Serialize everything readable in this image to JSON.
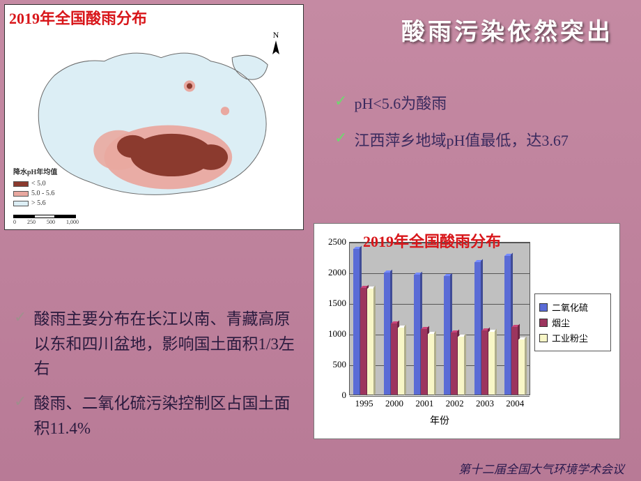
{
  "slide": {
    "title": "酸雨污染依然突出",
    "footer": "第十二届全国大气环境学术会议"
  },
  "map": {
    "title": "2019年全国酸雨分布",
    "compass_label": "N",
    "legend_title": "降水pH年均值",
    "legend_items": [
      {
        "label": "< 5.0",
        "color": "#8b3a2e"
      },
      {
        "label": "5.0 - 5.6",
        "color": "#e9a8a0"
      },
      {
        "label": "> 5.6",
        "color": "#dceef5"
      }
    ],
    "scale_ticks": [
      "0",
      "250",
      "500",
      "1,000"
    ],
    "outline_color": "#9fb8c8",
    "heavy_color": "#8b3a2e",
    "light_color": "#e9a8a0",
    "background": "#ffffff"
  },
  "bullets_top": [
    "pH<5.6为酸雨",
    "江西萍乡地域pH值最低，达3.67"
  ],
  "bullets_bottom": [
    "酸雨主要分布在长江以南、青藏高原以东和四川盆地，影响国土面积1/3左右",
    "酸雨、二氧化硫污染控制区占国土面积11.4%"
  ],
  "chart": {
    "type": "bar",
    "overlay_title": "2019年全国酸雨分布",
    "x_label": "年份",
    "categories": [
      "1995",
      "2000",
      "2001",
      "2002",
      "2003",
      "2004"
    ],
    "series": [
      {
        "name": "二氧化硫",
        "color": "#5a6bd6",
        "values": [
          2370,
          1990,
          1950,
          1930,
          2160,
          2260
        ]
      },
      {
        "name": "烟尘",
        "color": "#9c355e",
        "values": [
          1740,
          1160,
          1070,
          1010,
          1050,
          1100
        ]
      },
      {
        "name": "工业粉尘",
        "color": "#f8f6c7",
        "values": [
          1730,
          1090,
          990,
          940,
          1020,
          900
        ]
      }
    ],
    "y_min": 0,
    "y_max": 2500,
    "y_step": 500,
    "y_ticks": [
      0,
      500,
      1000,
      1500,
      2000,
      2500
    ],
    "plot_background": "#c0c0c0",
    "gridline_color": "#555555",
    "tick_fontsize": 13,
    "group_width_ratio": 0.82
  },
  "colors": {
    "slide_bg_top": "#c58aa3",
    "slide_bg_bottom": "#b87a96",
    "title_text": "#ffffff",
    "body_text": "#3a2a5e",
    "accent_red": "#d8161a",
    "check_green": "#6fd86f"
  }
}
